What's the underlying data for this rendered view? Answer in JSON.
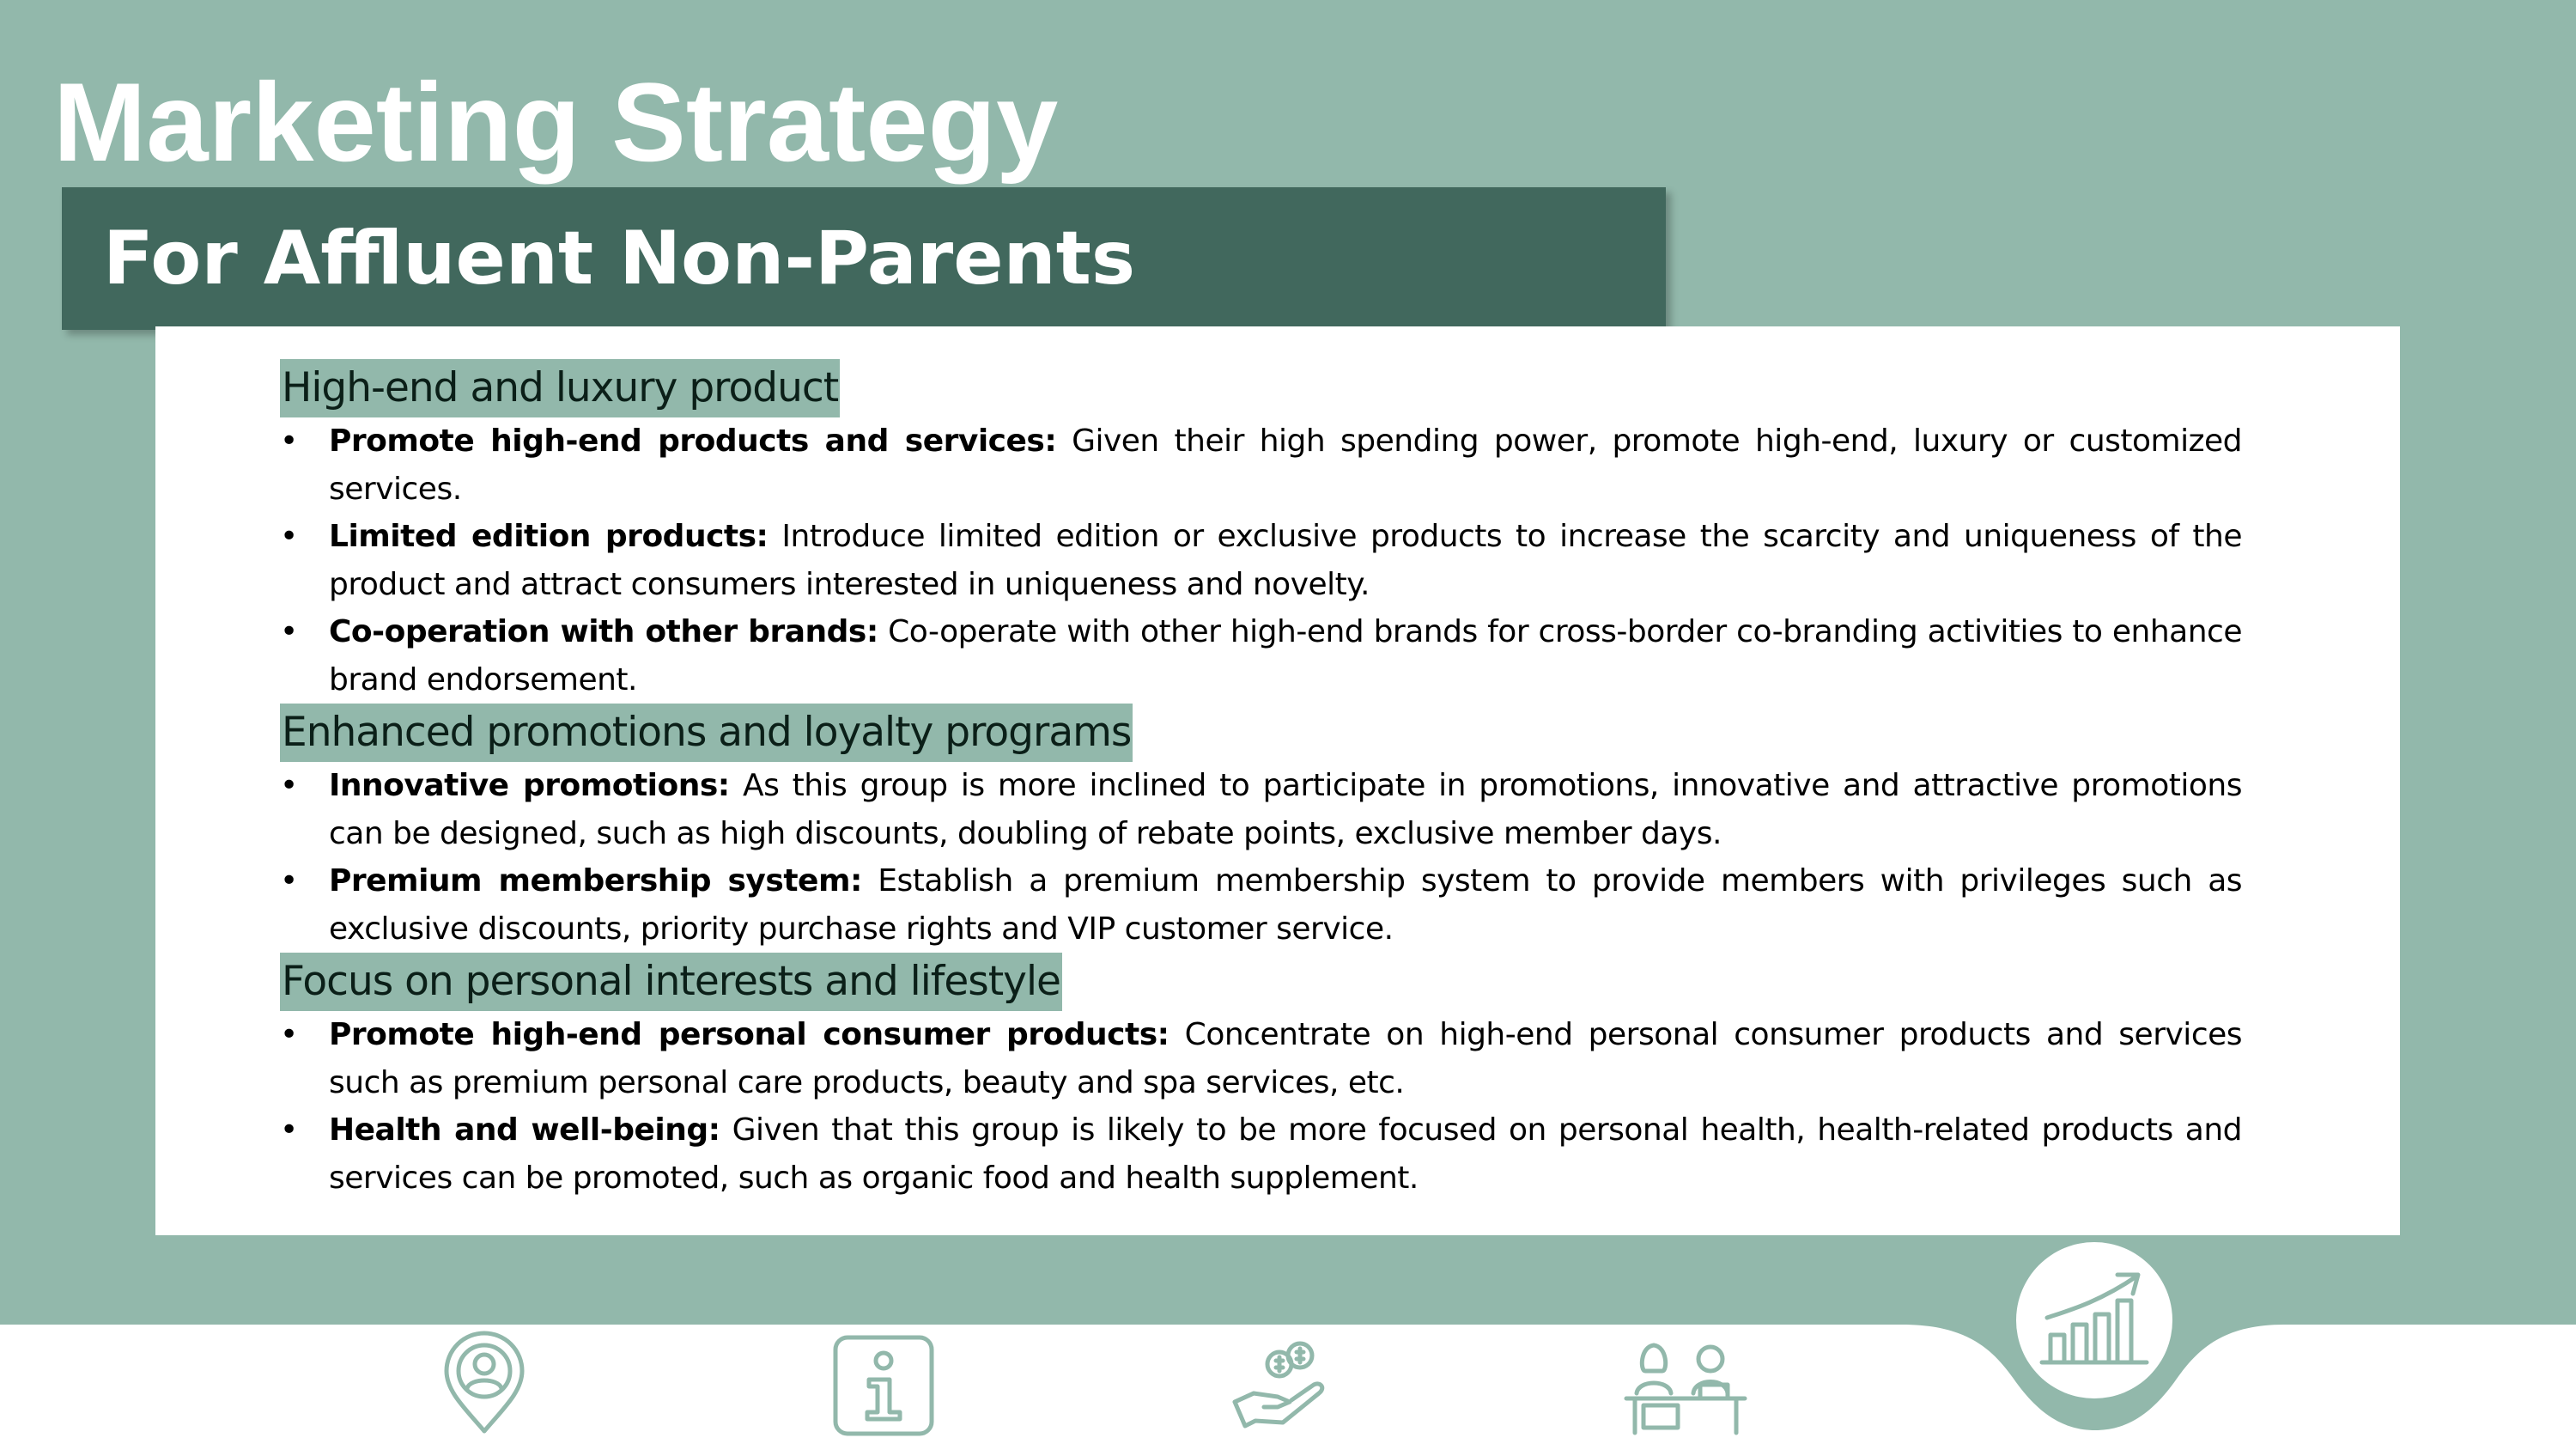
{
  "slide": {
    "title": "Marketing Strategy",
    "subtitle": "For Affluent Non-Parents"
  },
  "sections": [
    {
      "heading": "High-end and luxury product",
      "bullets": [
        {
          "lead": "Promote high-end products and services:",
          "text": " Given their high spending power, promote high-end, luxury or customized services."
        },
        {
          "lead": "Limited edition products:",
          "text": " Introduce limited edition or exclusive products to increase the scarcity and uniqueness of the product and attract consumers interested in uniqueness and novelty."
        },
        {
          "lead": "Co-operation with other brands:",
          "text": " Co-operate with other high-end brands for cross-border co-branding activities to enhance brand endorsement."
        }
      ]
    },
    {
      "heading": "Enhanced promotions and loyalty programs",
      "bullets": [
        {
          "lead": "Innovative promotions:",
          "text": " As this group is more inclined to participate in promotions, innovative and attractive promotions can be designed, such as high discounts, doubling of rebate points, exclusive member days."
        },
        {
          "lead": "Premium membership system:",
          "text": " Establish a premium membership system to provide members with privileges such as exclusive discounts, priority purchase rights and VIP customer service."
        }
      ]
    },
    {
      "heading": "Focus on personal interests and lifestyle",
      "bullets": [
        {
          "lead": "Promote high-end personal consumer products:",
          "text": " Concentrate on high-end personal consumer products and services such as premium personal care products, beauty and spa services, etc."
        },
        {
          "lead": "Health and well-being:",
          "text": " Given that this group is likely to be more focused on personal health, health-related products and services can be promoted, such as organic food and health supplement."
        }
      ]
    }
  ],
  "bullet_glyph": "•",
  "colors": {
    "background": "#92b8ab",
    "subtitle_bar": "#41685d",
    "panel": "#ffffff",
    "heading_highlight": "#92b8ab",
    "icon_stroke": "#92b8ab"
  },
  "footer_nav": [
    {
      "icon": "location-person-icon"
    },
    {
      "icon": "info-icon"
    },
    {
      "icon": "money-hand-icon"
    },
    {
      "icon": "people-at-desks-icon"
    },
    {
      "icon": "growth-chart-icon",
      "active": true
    }
  ]
}
